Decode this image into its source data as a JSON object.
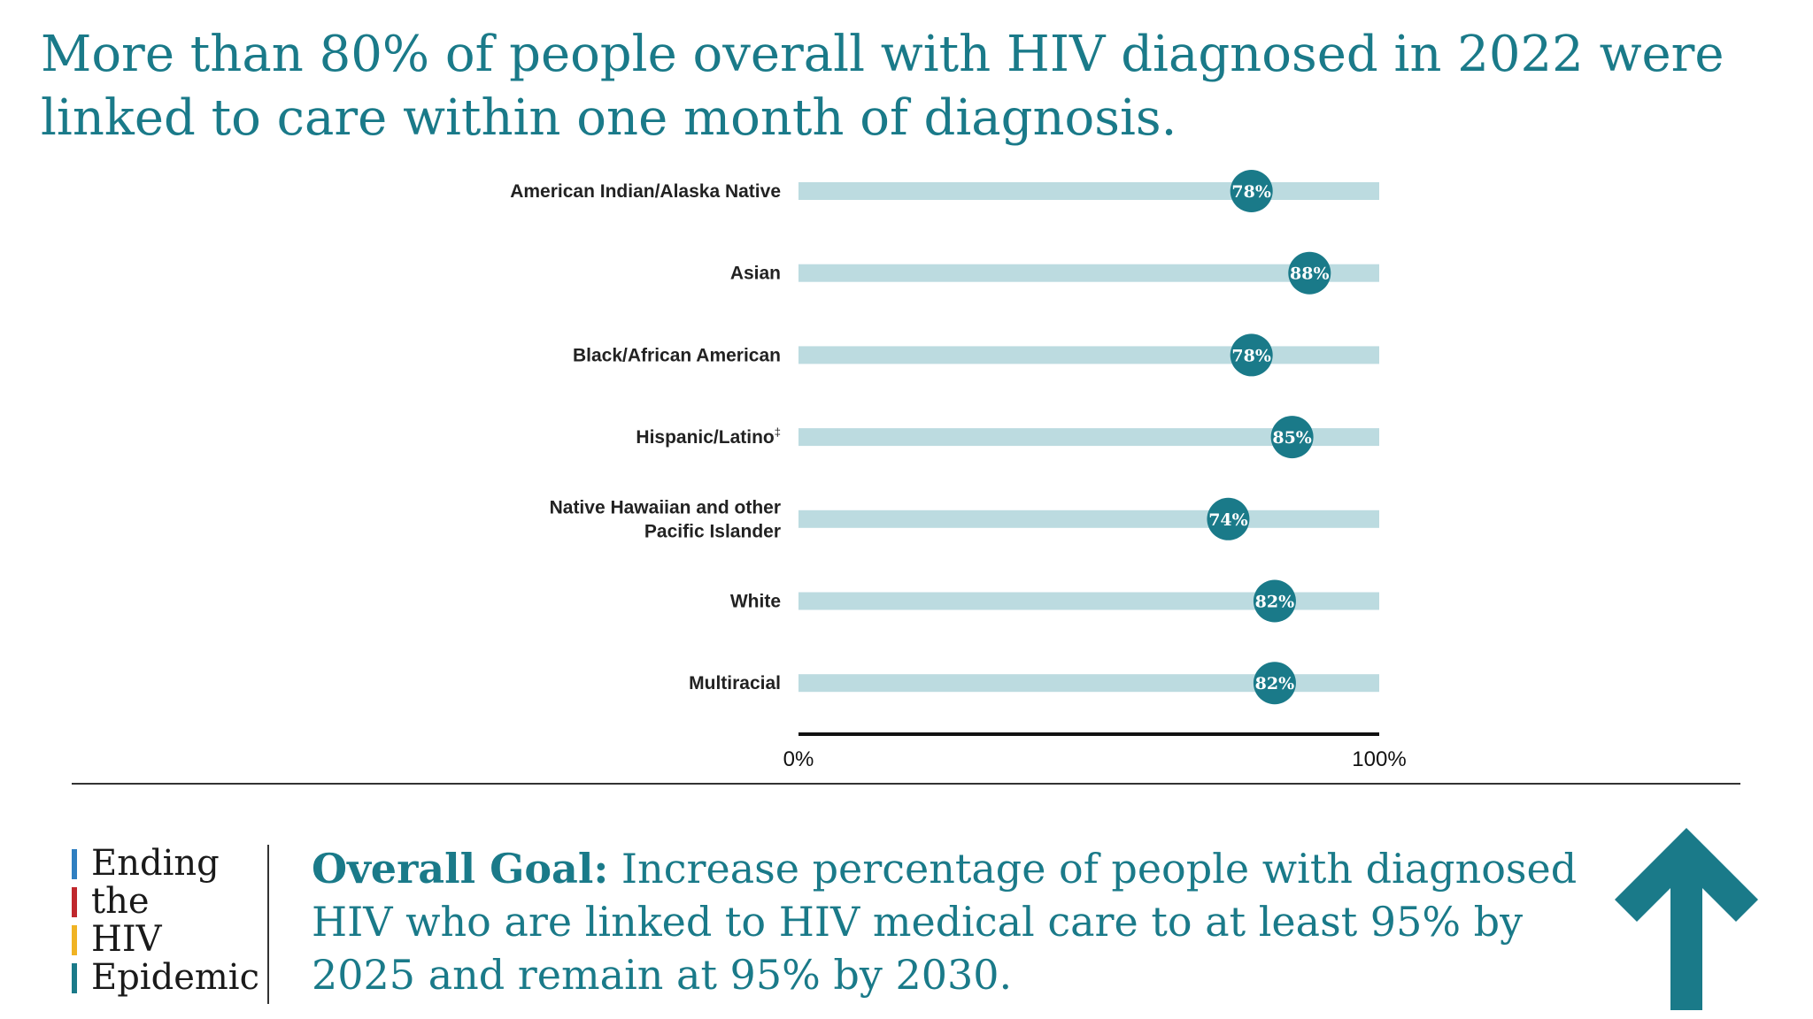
{
  "title": "More than 80% of people overall with HIV diagnosed in 2022 were linked to care within one month of diagnosis.",
  "chart_data": {
    "type": "dot",
    "categories": [
      "American Indian/Alaska Native",
      "Asian",
      "Black/African American",
      "Hispanic/Latino",
      "Native Hawaiian and other Pacific Islander",
      "White",
      "Multiracial"
    ],
    "category_notes": [
      "",
      "",
      "",
      "‡",
      "",
      "",
      ""
    ],
    "category_lines": [
      [
        "American Indian/Alaska Native"
      ],
      [
        "Asian"
      ],
      [
        "Black/African American"
      ],
      [
        "Hispanic/Latino"
      ],
      [
        "Native Hawaiian and other",
        "Pacific Islander"
      ],
      [
        "White"
      ],
      [
        "Multiracial"
      ]
    ],
    "values": [
      78,
      88,
      78,
      85,
      74,
      82,
      82
    ],
    "value_labels": [
      "78%",
      "88%",
      "78%",
      "85%",
      "74%",
      "82%",
      "82%"
    ],
    "xlim": [
      0,
      100
    ],
    "xtick_labels": [
      "0%",
      "100%"
    ],
    "grid": false
  },
  "logo": {
    "lines": [
      "Ending",
      "the",
      "HIV",
      "Epidemic"
    ],
    "bar_colors": [
      "#2f7fc1",
      "#c0272d",
      "#f0b323",
      "#1a7a89"
    ]
  },
  "goal": {
    "label": "Overall Goal:",
    "text": " Increase percentage of people with diagnosed HIV who are linked to HIV medical care to at least 95% by 2025 and remain at 95% by 2030."
  },
  "colors": {
    "accent": "#1a7a89",
    "track": "#bcdbe0",
    "axis": "#111111"
  },
  "icons": {
    "arrow": "arrow-up-icon"
  }
}
